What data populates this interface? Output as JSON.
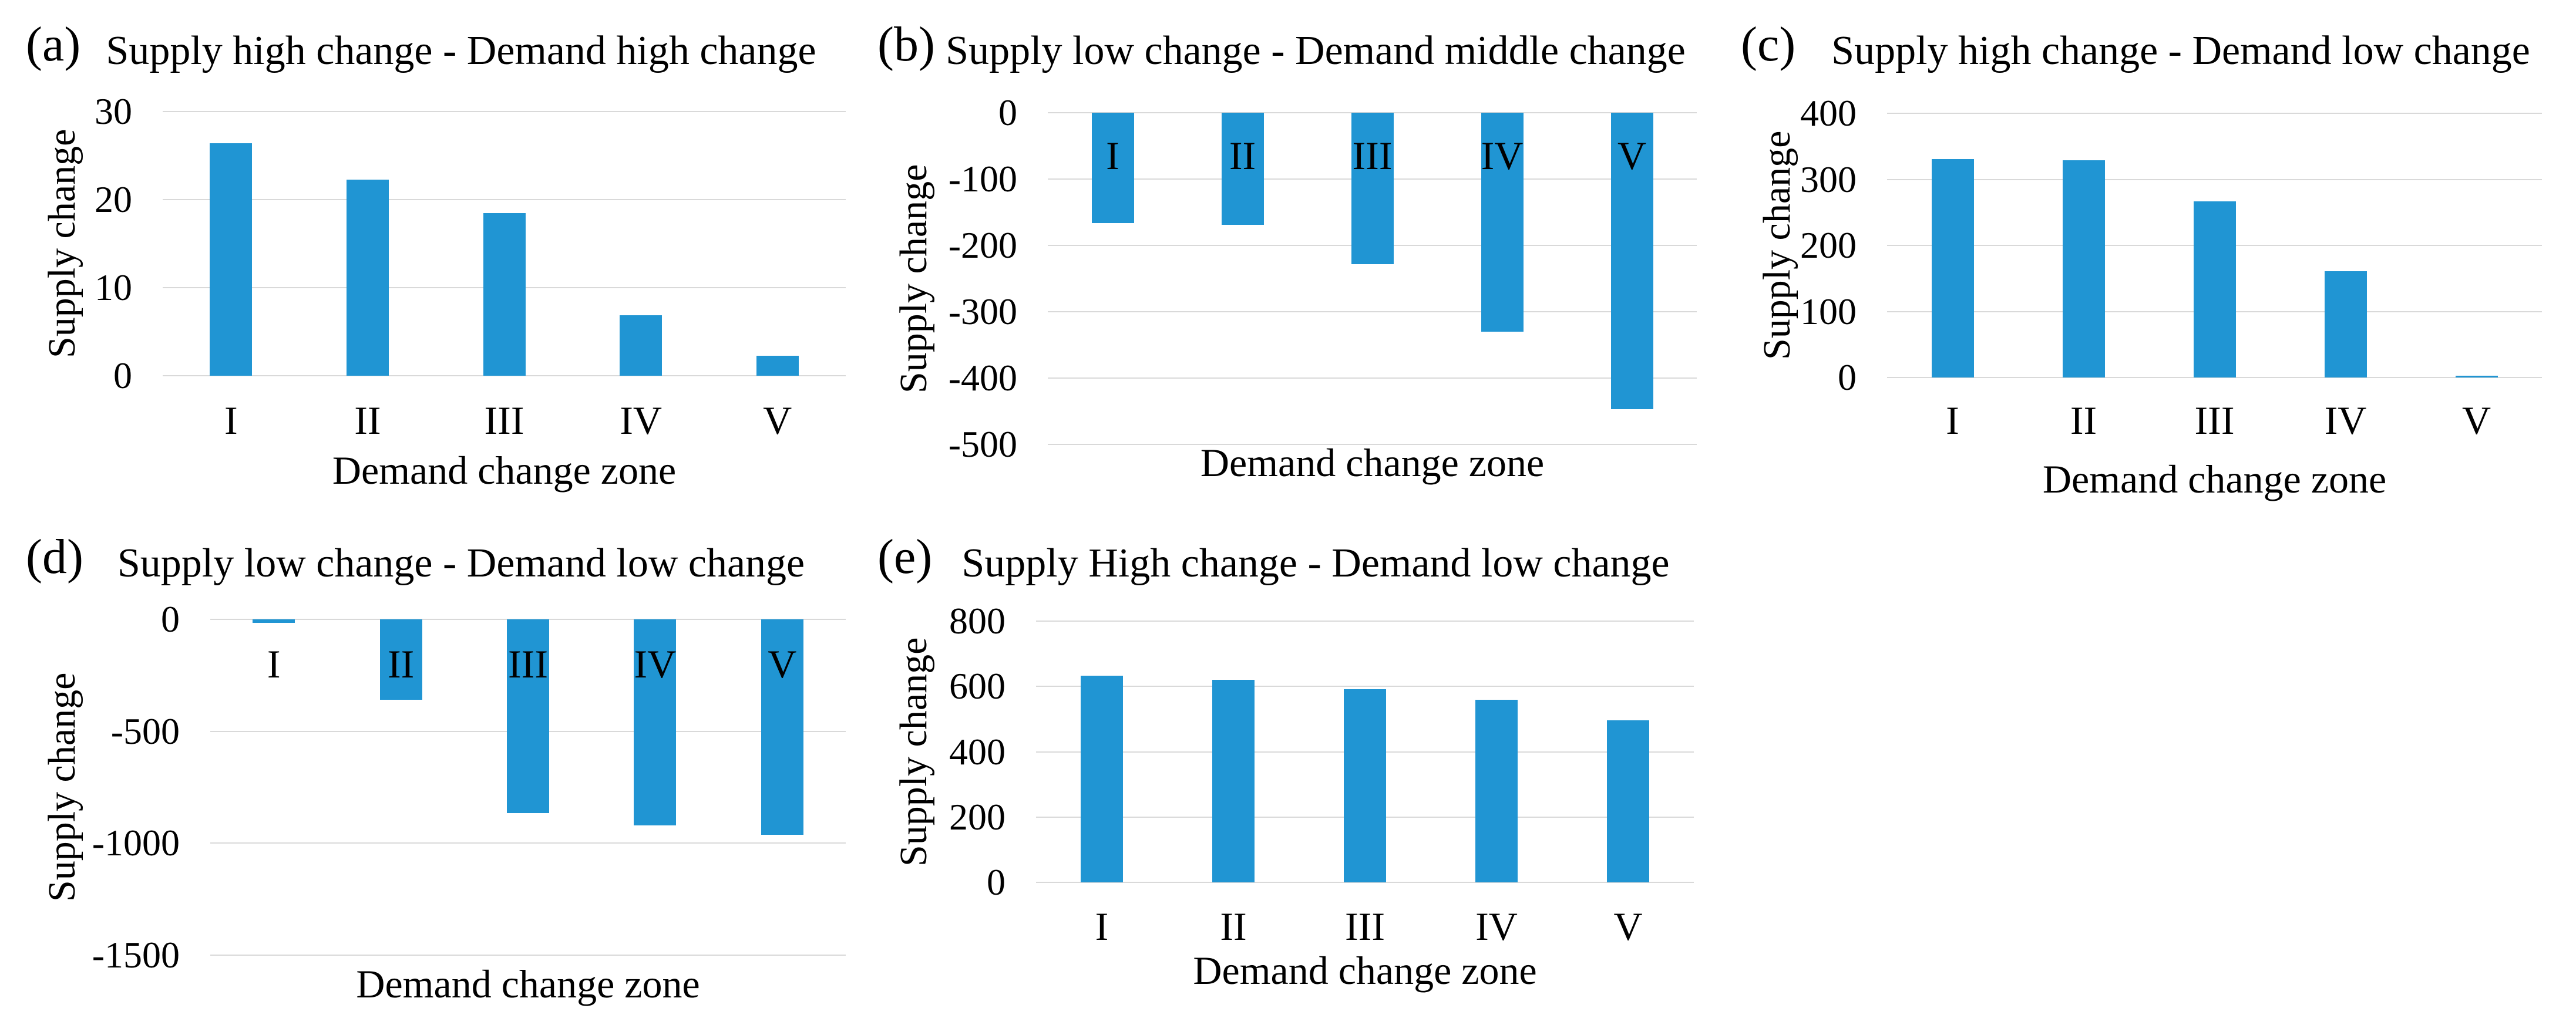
{
  "styles": {
    "background": "#ffffff",
    "bar_color": "#2095d3",
    "grid_color": "#d9d9d9",
    "text_color": "#000000"
  },
  "chart_data": [
    {
      "type": "bar",
      "panel_label": "(a)",
      "title": "Supply high change - Demand high change",
      "ylabel": "Supply change",
      "xlabel": "Demand change zone",
      "categories": [
        "I",
        "II",
        "III",
        "IV",
        "V"
      ],
      "values": [
        26.4,
        22.3,
        18.5,
        6.9,
        2.3
      ],
      "ylim": [
        0,
        30
      ],
      "yticks": [
        30,
        20,
        10,
        0
      ],
      "grid": true,
      "legend": false,
      "labels_inside": false
    },
    {
      "type": "bar",
      "panel_label": "(b)",
      "title": "Supply low change - Demand middle change",
      "ylabel": "Supply change",
      "xlabel": "Demand change zone",
      "categories": [
        "I",
        "II",
        "III",
        "IV",
        "V"
      ],
      "values": [
        -166,
        -169,
        -228,
        -330,
        -447
      ],
      "ylim": [
        -500,
        0
      ],
      "yticks": [
        0,
        -100,
        -200,
        -300,
        -400,
        -500
      ],
      "grid": true,
      "legend": false,
      "labels_inside": true
    },
    {
      "type": "bar",
      "panel_label": "(c)",
      "title": "Supply high change - Demand low change",
      "ylabel": "Supply change",
      "xlabel": "Demand change zone",
      "categories": [
        "I",
        "II",
        "III",
        "IV",
        "V"
      ],
      "values": [
        331,
        329,
        267,
        161,
        3
      ],
      "ylim": [
        0,
        400
      ],
      "yticks": [
        400,
        300,
        200,
        100,
        0
      ],
      "grid": true,
      "legend": false,
      "labels_inside": false
    },
    {
      "type": "bar",
      "panel_label": "(d)",
      "title": "Supply low change - Demand low change",
      "ylabel": "Supply change",
      "xlabel": "Demand change zone",
      "categories": [
        "I",
        "II",
        "III",
        "IV",
        "V"
      ],
      "values": [
        -15,
        -360,
        -866,
        -921,
        -963
      ],
      "ylim": [
        -1500,
        0
      ],
      "yticks": [
        0,
        -500,
        -1000,
        -1500
      ],
      "grid": true,
      "legend": false,
      "labels_inside": true
    },
    {
      "type": "bar",
      "panel_label": "(e)",
      "title": "Supply High change - Demand low change",
      "ylabel": "Supply change",
      "xlabel": "Demand change zone",
      "categories": [
        "I",
        "II",
        "III",
        "IV",
        "V"
      ],
      "values": [
        632,
        620,
        592,
        560,
        496
      ],
      "ylim": [
        0,
        800
      ],
      "yticks": [
        800,
        600,
        400,
        200,
        0
      ],
      "grid": true,
      "legend": false,
      "labels_inside": false
    }
  ]
}
